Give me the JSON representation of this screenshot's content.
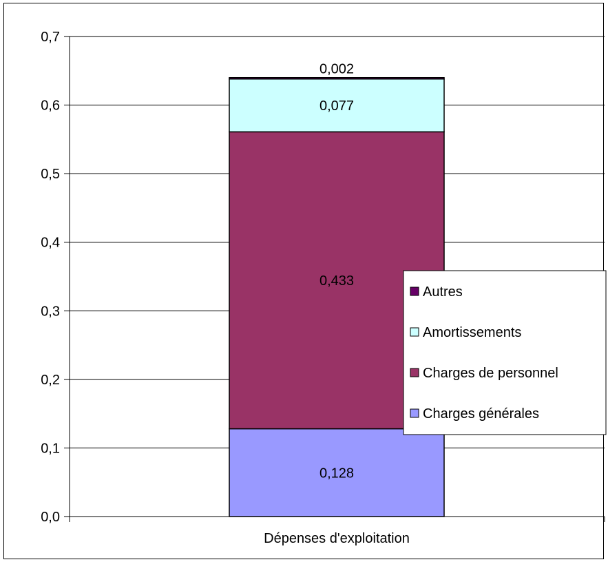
{
  "chart_data": {
    "type": "bar",
    "stacked": true,
    "categories": [
      "Dépenses d'exploitation"
    ],
    "series": [
      {
        "name": "Charges générales",
        "values": [
          0.128
        ],
        "label": "0,128",
        "color": "#9999ff"
      },
      {
        "name": "Charges de personnel",
        "values": [
          0.433
        ],
        "label": "0,433",
        "color": "#993366"
      },
      {
        "name": "Amortissements",
        "values": [
          0.077
        ],
        "label": "0,077",
        "color": "#ccffff"
      },
      {
        "name": "Autres",
        "values": [
          0.002
        ],
        "label": "0,002",
        "color": "#660066"
      }
    ],
    "legend_order": [
      "Autres",
      "Amortissements",
      "Charges de personnel",
      "Charges générales"
    ],
    "ylim": [
      0,
      0.7
    ],
    "yticks": [
      {
        "value": 0.0,
        "label": "0,0"
      },
      {
        "value": 0.1,
        "label": "0,1"
      },
      {
        "value": 0.2,
        "label": "0,2"
      },
      {
        "value": 0.3,
        "label": "0,3"
      },
      {
        "value": 0.4,
        "label": "0,4"
      },
      {
        "value": 0.5,
        "label": "0,5"
      },
      {
        "value": 0.6,
        "label": "0,6"
      },
      {
        "value": 0.7,
        "label": "0,7"
      }
    ],
    "title": "",
    "xlabel": "",
    "ylabel": "",
    "grid": true,
    "legend_position": "right"
  }
}
